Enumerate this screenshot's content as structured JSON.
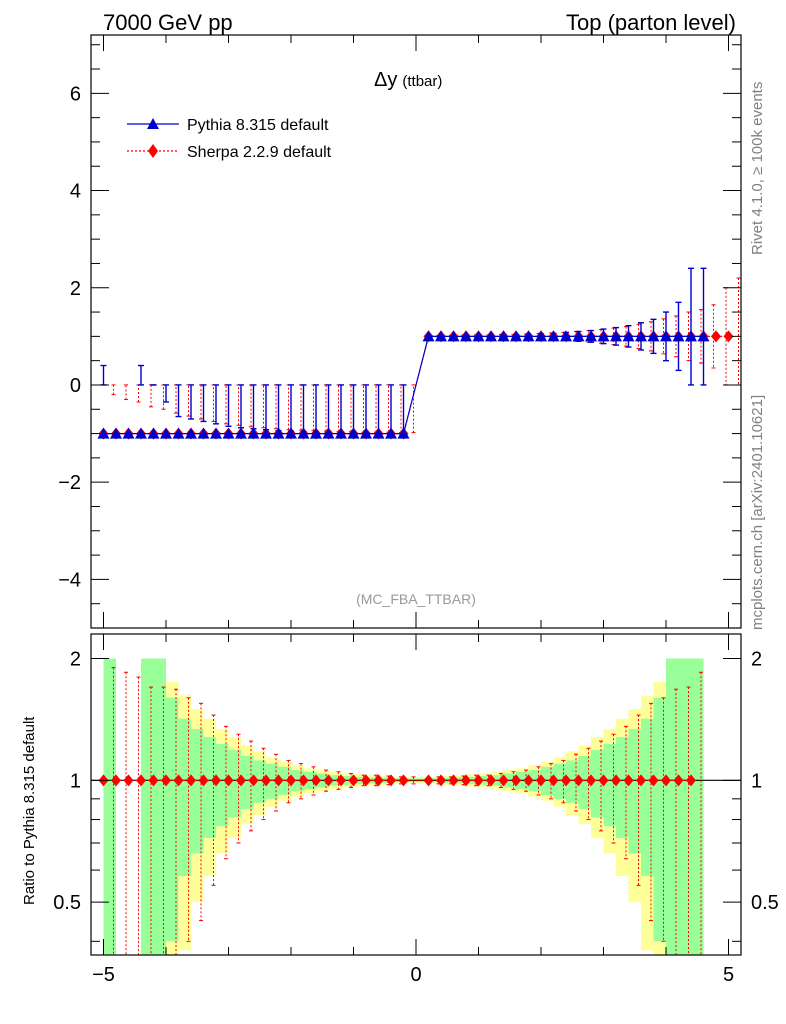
{
  "header": {
    "left": "7000 GeV pp",
    "right": "Top (parton level)"
  },
  "side_text": {
    "rivet": "Rivet 4.1.0, ≥ 100k events",
    "mcplots": "mcplots.cern.ch [arXiv:2401.10621]"
  },
  "colors": {
    "pythia": "#0000cc",
    "sherpa": "#ff0000",
    "band_inner": "#99ff99",
    "band_outer": "#ffff99"
  },
  "chart_data": [
    {
      "type": "line",
      "title": "Δy",
      "title_suffix": "(ttbar)",
      "analysis_label": "(MC_FBA_TTBAR)",
      "xlabel": "",
      "ylabel": "",
      "xlim": [
        -5.2,
        5.2
      ],
      "ylim": [
        -5.0,
        7.2
      ],
      "y_tick_labels": [
        "−4",
        "−2",
        "0",
        "2",
        "4",
        "6"
      ],
      "y_tick_values": [
        -4,
        -2,
        0,
        2,
        4,
        6
      ],
      "legend_position": "top-left",
      "series": [
        {
          "name": "Pythia 8.315 default",
          "marker": "triangle",
          "x": [
            -5.0,
            -4.8,
            -4.6,
            -4.4,
            -4.2,
            -4.0,
            -3.8,
            -3.6,
            -3.4,
            -3.2,
            -3.0,
            -2.8,
            -2.6,
            -2.4,
            -2.2,
            -2.0,
            -1.8,
            -1.6,
            -1.4,
            -1.2,
            -1.0,
            -0.8,
            -0.6,
            -0.4,
            -0.2,
            0.2,
            0.4,
            0.6,
            0.8,
            1.0,
            1.2,
            1.4,
            1.6,
            1.8,
            2.0,
            2.2,
            2.4,
            2.6,
            2.8,
            3.0,
            3.2,
            3.4,
            3.6,
            3.8,
            4.0,
            4.2,
            4.4,
            4.6
          ],
          "y": [
            -1,
            -1,
            -1,
            -1,
            -1,
            -1,
            -1,
            -1,
            -1,
            -1,
            -1,
            -1,
            -1,
            -1,
            -1,
            -1,
            -1,
            -1,
            -1,
            -1,
            -1,
            -1,
            -1,
            -1,
            -1,
            1,
            1,
            1,
            1,
            1,
            1,
            1,
            1,
            1,
            1,
            1,
            1,
            1,
            1,
            1,
            1,
            1,
            1,
            1,
            1,
            1,
            1,
            1
          ],
          "yerr": [
            1.4,
            0,
            0,
            1.4,
            1.0,
            0.65,
            0.35,
            0.3,
            0.25,
            0.2,
            0.15,
            0.12,
            0.1,
            0.08,
            0.06,
            0.05,
            0.04,
            0.03,
            0.03,
            0.02,
            0.02,
            0.02,
            0.01,
            0.01,
            0.01,
            0.01,
            0.01,
            0.01,
            0.02,
            0.02,
            0.02,
            0.03,
            0.03,
            0.04,
            0.05,
            0.06,
            0.08,
            0.1,
            0.12,
            0.15,
            0.18,
            0.22,
            0.28,
            0.35,
            0.5,
            0.7,
            1.4,
            1.4
          ]
        },
        {
          "name": "Sherpa 2.2.9 default",
          "marker": "diamond",
          "x": [
            -5.0,
            -4.8,
            -4.6,
            -4.4,
            -4.2,
            -4.0,
            -3.8,
            -3.6,
            -3.4,
            -3.2,
            -3.0,
            -2.8,
            -2.6,
            -2.4,
            -2.2,
            -2.0,
            -1.8,
            -1.6,
            -1.4,
            -1.2,
            -1.0,
            -0.8,
            -0.6,
            -0.4,
            -0.2,
            0.2,
            0.4,
            0.6,
            0.8,
            1.0,
            1.2,
            1.4,
            1.6,
            1.8,
            2.0,
            2.2,
            2.4,
            2.6,
            2.8,
            3.0,
            3.2,
            3.4,
            3.6,
            3.8,
            4.0,
            4.2,
            4.4,
            4.6,
            4.8,
            5.0
          ],
          "y": [
            -1,
            -1,
            -1,
            -1,
            -1,
            -1,
            -1,
            -1,
            -1,
            -1,
            -1,
            -1,
            -1,
            -1,
            -1,
            -1,
            -1,
            -1,
            -1,
            -1,
            -1,
            -1,
            -1,
            -1,
            -1,
            1,
            1,
            1,
            1,
            1,
            1,
            1,
            1,
            1,
            1,
            1,
            1,
            1,
            1,
            1,
            1,
            1,
            1,
            1,
            1,
            1,
            1,
            1,
            1,
            1
          ],
          "yerr": [
            0.8,
            0.7,
            0.65,
            0.55,
            0.5,
            0.42,
            0.36,
            0.3,
            0.25,
            0.2,
            0.17,
            0.14,
            0.12,
            0.1,
            0.08,
            0.07,
            0.06,
            0.05,
            0.04,
            0.04,
            0.03,
            0.03,
            0.03,
            0.02,
            0.02,
            0.02,
            0.02,
            0.03,
            0.03,
            0.03,
            0.04,
            0.04,
            0.05,
            0.06,
            0.07,
            0.08,
            0.1,
            0.12,
            0.14,
            0.17,
            0.2,
            0.25,
            0.3,
            0.36,
            0.42,
            0.5,
            0.55,
            0.65,
            1.0,
            1.2
          ]
        }
      ]
    },
    {
      "type": "line",
      "title": "",
      "xlabel": "",
      "ylabel": "Ratio to Pythia 8.315 default",
      "xlim": [
        -5.2,
        5.2
      ],
      "ylim": [
        0.37,
        2.3
      ],
      "y_scale": "log",
      "x_tick_labels": [
        "−5",
        "0",
        "5"
      ],
      "x_tick_values": [
        -5,
        0,
        5
      ],
      "y_tick_labels": [
        "0.5",
        "1",
        "2"
      ],
      "y_tick_values": [
        0.5,
        1,
        2
      ],
      "bins": {
        "x": [
          -5.0,
          -4.8,
          -4.6,
          -4.4,
          -4.2,
          -4.0,
          -3.8,
          -3.6,
          -3.4,
          -3.2,
          -3.0,
          -2.8,
          -2.6,
          -2.4,
          -2.2,
          -2.0,
          -1.8,
          -1.6,
          -1.4,
          -1.2,
          -1.0,
          -0.8,
          -0.6,
          -0.4,
          -0.2,
          0.0,
          0.2,
          0.4,
          0.6,
          0.8,
          1.0,
          1.2,
          1.4,
          1.6,
          1.8,
          2.0,
          2.2,
          2.4,
          2.6,
          2.8,
          3.0,
          3.2,
          3.4,
          3.6,
          3.8,
          4.0,
          4.2,
          4.4
        ],
        "inner": [
          1.0,
          0,
          0,
          1.0,
          1.0,
          0.6,
          0.42,
          0.34,
          0.28,
          0.23,
          0.19,
          0.15,
          0.12,
          0.1,
          0.08,
          0.06,
          0.05,
          0.04,
          0.03,
          0.025,
          0.02,
          0.018,
          0.015,
          0.012,
          0.01,
          0.01,
          0.012,
          0.015,
          0.018,
          0.02,
          0.025,
          0.03,
          0.04,
          0.05,
          0.06,
          0.08,
          0.1,
          0.12,
          0.15,
          0.19,
          0.23,
          0.28,
          0.34,
          0.42,
          0.6,
          1.0,
          1.0,
          1.0
        ],
        "outer": [
          1.0,
          0,
          0,
          1.0,
          1.0,
          0.75,
          0.62,
          0.5,
          0.42,
          0.34,
          0.28,
          0.22,
          0.18,
          0.14,
          0.11,
          0.09,
          0.07,
          0.06,
          0.05,
          0.04,
          0.035,
          0.03,
          0.025,
          0.02,
          0.018,
          0.018,
          0.02,
          0.025,
          0.03,
          0.035,
          0.04,
          0.05,
          0.06,
          0.07,
          0.09,
          0.11,
          0.14,
          0.18,
          0.22,
          0.28,
          0.34,
          0.42,
          0.5,
          0.62,
          0.75,
          1.0,
          1.0,
          1.0
        ]
      },
      "series": [
        {
          "name": "Sherpa 2.2.9 default / Pythia 8.315 default",
          "marker": "diamond",
          "x": [
            -5.0,
            -4.8,
            -4.6,
            -4.4,
            -4.2,
            -4.0,
            -3.8,
            -3.6,
            -3.4,
            -3.2,
            -3.0,
            -2.8,
            -2.6,
            -2.4,
            -2.2,
            -2.0,
            -1.8,
            -1.6,
            -1.4,
            -1.2,
            -1.0,
            -0.8,
            -0.6,
            -0.4,
            -0.2,
            0.2,
            0.4,
            0.6,
            0.8,
            1.0,
            1.2,
            1.4,
            1.6,
            1.8,
            2.0,
            2.2,
            2.4,
            2.6,
            2.8,
            3.0,
            3.2,
            3.4,
            3.6,
            3.8,
            4.0,
            4.2,
            4.4
          ],
          "y": [
            1,
            1,
            1,
            1,
            1,
            1,
            1,
            1,
            1,
            1,
            1,
            1,
            1,
            1,
            1,
            1,
            1,
            1,
            1,
            1,
            1,
            1,
            1,
            1,
            1,
            1,
            1,
            1,
            1,
            1,
            1,
            1,
            1,
            1,
            1,
            1,
            1,
            1,
            1,
            1,
            1,
            1,
            1,
            1,
            1,
            1,
            1
          ],
          "yerr": [
            0.9,
            0.85,
            0.8,
            0.7,
            0.7,
            0.68,
            0.6,
            0.55,
            0.45,
            0.36,
            0.3,
            0.25,
            0.2,
            0.16,
            0.12,
            0.1,
            0.08,
            0.06,
            0.05,
            0.04,
            0.03,
            0.03,
            0.025,
            0.02,
            0.02,
            0.02,
            0.02,
            0.025,
            0.03,
            0.03,
            0.04,
            0.05,
            0.06,
            0.08,
            0.1,
            0.12,
            0.16,
            0.2,
            0.25,
            0.3,
            0.36,
            0.45,
            0.55,
            0.6,
            0.68,
            0.7,
            0.85
          ]
        }
      ]
    }
  ]
}
